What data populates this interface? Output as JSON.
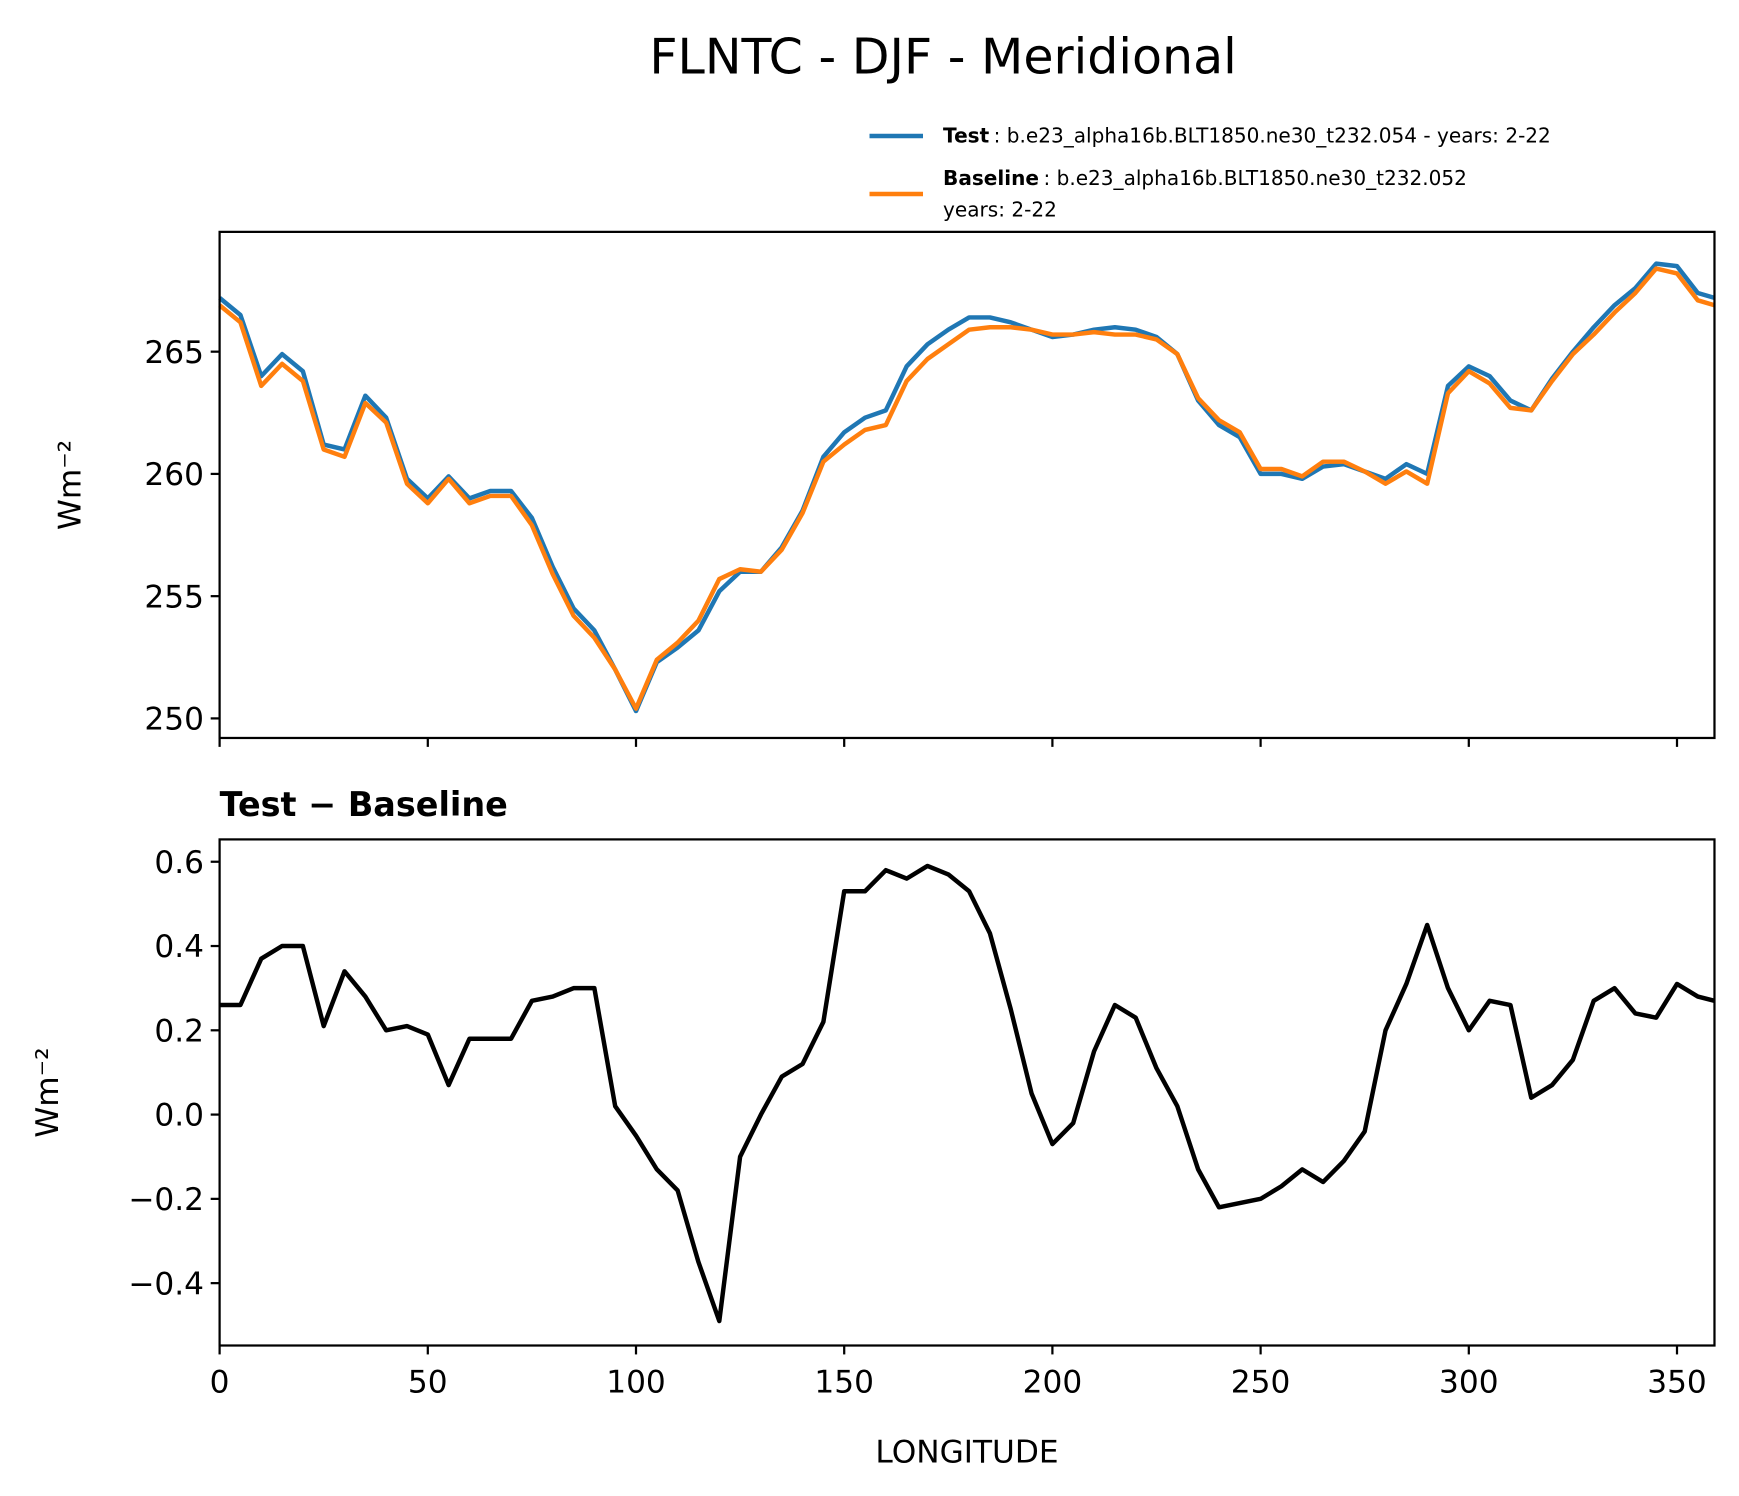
{
  "chart_data": [
    {
      "type": "line",
      "title": "FLNTC - DJF - Meridional",
      "ylabel": "Wm⁻²",
      "x": [
        0,
        5,
        10,
        15,
        20,
        25,
        30,
        35,
        40,
        45,
        50,
        55,
        60,
        65,
        70,
        75,
        80,
        85,
        90,
        95,
        100,
        105,
        110,
        115,
        120,
        125,
        130,
        135,
        140,
        145,
        150,
        155,
        160,
        165,
        170,
        175,
        180,
        185,
        190,
        195,
        200,
        205,
        210,
        215,
        220,
        225,
        230,
        235,
        240,
        245,
        250,
        255,
        260,
        265,
        270,
        275,
        280,
        285,
        290,
        295,
        300,
        305,
        310,
        315,
        320,
        325,
        330,
        335,
        340,
        345,
        350,
        355,
        359
      ],
      "series": [
        {
          "name": "Test",
          "legend_text": [
            ": b.e23_alpha16b.BLT1850.ne30_t232.054 - years: 2-22"
          ],
          "color": "#1f77b4",
          "values": [
            267.2,
            266.5,
            264.0,
            264.9,
            264.2,
            261.2,
            261.0,
            263.2,
            262.3,
            259.8,
            259.0,
            259.9,
            259.0,
            259.3,
            259.3,
            258.2,
            256.2,
            254.5,
            253.6,
            252.0,
            250.3,
            252.3,
            252.9,
            253.6,
            255.2,
            256.0,
            256.0,
            257.0,
            258.5,
            260.7,
            261.7,
            262.3,
            262.6,
            264.4,
            265.3,
            265.9,
            266.4,
            266.4,
            266.2,
            265.9,
            265.6,
            265.7,
            265.9,
            266.0,
            265.9,
            265.6,
            264.9,
            263.0,
            262.0,
            261.5,
            260.0,
            260.0,
            259.8,
            260.3,
            260.4,
            260.1,
            259.8,
            260.4,
            260.0,
            263.6,
            264.4,
            264.0,
            263.0,
            262.6,
            263.9,
            265.0,
            266.0,
            266.9,
            267.6,
            268.6,
            268.5,
            267.4,
            267.2
          ]
        },
        {
          "name": "Baseline",
          "legend_text": [
            ": b.e23_alpha16b.BLT1850.ne30_t232.052",
            "years: 2-22"
          ],
          "color": "#ff7f0e",
          "values": [
            266.9,
            266.2,
            263.6,
            264.5,
            263.8,
            261.0,
            260.7,
            262.9,
            262.1,
            259.6,
            258.8,
            259.8,
            258.8,
            259.1,
            259.1,
            257.9,
            255.9,
            254.2,
            253.3,
            252.0,
            250.4,
            252.4,
            253.1,
            254.0,
            255.7,
            256.1,
            256.0,
            256.9,
            258.4,
            260.5,
            261.2,
            261.8,
            262.0,
            263.8,
            264.7,
            265.3,
            265.9,
            266.0,
            266.0,
            265.9,
            265.7,
            265.7,
            265.8,
            265.7,
            265.7,
            265.5,
            264.9,
            263.1,
            262.2,
            261.7,
            260.2,
            260.2,
            259.9,
            260.5,
            260.5,
            260.1,
            259.6,
            260.1,
            259.6,
            263.3,
            264.2,
            263.7,
            262.7,
            262.6,
            263.8,
            264.9,
            265.7,
            266.6,
            267.4,
            268.4,
            268.2,
            267.1,
            266.9
          ]
        }
      ],
      "xlim": [
        0,
        359
      ],
      "xticks": [
        0,
        50,
        100,
        150,
        200,
        250,
        300,
        350
      ],
      "xtick_labels": false,
      "ylim": [
        249.2,
        269.9
      ],
      "yticks": [
        250,
        255,
        260,
        265
      ]
    },
    {
      "type": "line",
      "title": "Test − Baseline",
      "xlabel": "LONGITUDE",
      "ylabel": "Wm⁻²",
      "x": [
        0,
        5,
        10,
        15,
        20,
        25,
        30,
        35,
        40,
        45,
        50,
        55,
        60,
        65,
        70,
        75,
        80,
        85,
        90,
        95,
        100,
        105,
        110,
        115,
        120,
        125,
        130,
        135,
        140,
        145,
        150,
        155,
        160,
        165,
        170,
        175,
        180,
        185,
        190,
        195,
        200,
        205,
        210,
        215,
        220,
        225,
        230,
        235,
        240,
        245,
        250,
        255,
        260,
        265,
        270,
        275,
        280,
        285,
        290,
        295,
        300,
        305,
        310,
        315,
        320,
        325,
        330,
        335,
        340,
        345,
        350,
        355,
        359
      ],
      "series": [
        {
          "color": "#000000",
          "values": [
            0.26,
            0.26,
            0.37,
            0.4,
            0.4,
            0.21,
            0.34,
            0.28,
            0.2,
            0.21,
            0.19,
            0.07,
            0.18,
            0.18,
            0.18,
            0.27,
            0.28,
            0.3,
            0.3,
            0.02,
            -0.05,
            -0.13,
            -0.18,
            -0.35,
            -0.49,
            -0.1,
            0.0,
            0.09,
            0.12,
            0.22,
            0.53,
            0.53,
            0.58,
            0.56,
            0.59,
            0.57,
            0.53,
            0.43,
            0.25,
            0.05,
            -0.07,
            -0.02,
            0.15,
            0.26,
            0.23,
            0.11,
            0.02,
            -0.13,
            -0.22,
            -0.21,
            -0.2,
            -0.17,
            -0.13,
            -0.16,
            -0.11,
            -0.04,
            0.2,
            0.31,
            0.45,
            0.3,
            0.2,
            0.27,
            0.26,
            0.04,
            0.07,
            0.13,
            0.27,
            0.3,
            0.24,
            0.23,
            0.31,
            0.28,
            0.27
          ]
        }
      ],
      "xlim": [
        0,
        359
      ],
      "xticks": [
        0,
        50,
        100,
        150,
        200,
        250,
        300,
        350
      ],
      "xtick_labels": true,
      "ylim": [
        -0.548,
        0.653
      ],
      "yticks": [
        {
          "value": -0.4,
          "label": "−0.4"
        },
        {
          "value": -0.2,
          "label": "−0.2"
        },
        {
          "value": 0,
          "label": "0.0"
        },
        0.2,
        0.4,
        0.6
      ]
    }
  ]
}
